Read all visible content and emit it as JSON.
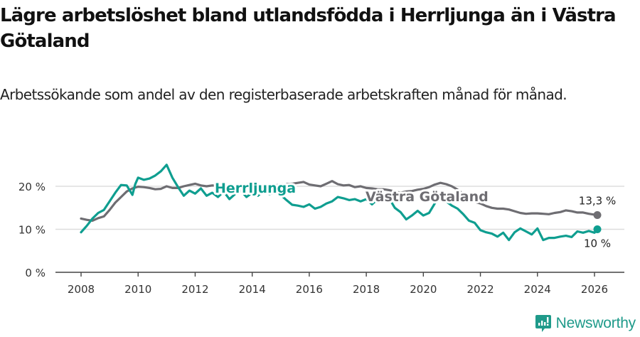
{
  "header": {
    "title": "Lägre arbetslöshet bland utlandsfödda i Herrljunga än i Västra Götaland",
    "subtitle": "Arbetssökande som andel av den registerbaserade arbetskraften månad för månad."
  },
  "colors": {
    "herrljunga": "#0f9e90",
    "vastra_gotaland": "#6e6d72",
    "grid": "#dddddd",
    "axis": "#444444",
    "brand": "#1f9a8a"
  },
  "footer": {
    "brand": "Newsworthy",
    "logo_icon": "bar-chart-speech-bubble-icon"
  },
  "chart_data": {
    "type": "line",
    "title": "Lägre arbetslöshet bland utlandsfödda i Herrljunga än i Västra Götaland",
    "subtitle": "Arbetssökande som andel av den registerbaserade arbetskraften månad för månad.",
    "xlabel": "",
    "ylabel": "",
    "x_ticks": [
      "2008",
      "2010",
      "2012",
      "2014",
      "2016",
      "2018",
      "2020",
      "2022",
      "2024",
      "2026"
    ],
    "y_ticks": [
      "0 %",
      "10 %",
      "20 %"
    ],
    "xlim": [
      2007.1,
      2027.1
    ],
    "ylim": [
      0,
      25
    ],
    "grid": true,
    "legend": "inline labels",
    "series": [
      {
        "name": "Herrljunga",
        "label": "Herrljunga",
        "end_label": "10 %",
        "x": [
          2008.0,
          2008.2,
          2008.4,
          2008.6,
          2008.8,
          2009.0,
          2009.2,
          2009.4,
          2009.6,
          2009.8,
          2009.9,
          2010.0,
          2010.2,
          2010.4,
          2010.6,
          2010.8,
          2011.0,
          2011.2,
          2011.4,
          2011.6,
          2011.8,
          2012.0,
          2012.2,
          2012.4,
          2012.6,
          2012.8,
          2013.0,
          2013.2,
          2013.4,
          2013.6,
          2013.8,
          2014.0,
          2014.2,
          2014.4,
          2014.6,
          2014.8,
          2015.0,
          2015.2,
          2015.4,
          2015.6,
          2015.8,
          2016.0,
          2016.2,
          2016.4,
          2016.6,
          2016.8,
          2017.0,
          2017.2,
          2017.4,
          2017.6,
          2017.8,
          2018.0,
          2018.2,
          2018.4,
          2018.6,
          2018.8,
          2019.0,
          2019.2,
          2019.4,
          2019.6,
          2019.8,
          2020.0,
          2020.2,
          2020.4,
          2020.6,
          2020.8,
          2021.0,
          2021.2,
          2021.4,
          2021.6,
          2021.8,
          2022.0,
          2022.2,
          2022.4,
          2022.6,
          2022.8,
          2023.0,
          2023.2,
          2023.4,
          2023.6,
          2023.8,
          2024.0,
          2024.2,
          2024.4,
          2024.6,
          2024.8,
          2025.0,
          2025.2,
          2025.4,
          2025.6,
          2025.8,
          2026.0,
          2026.1
        ],
        "values": [
          9.3,
          10.8,
          12.5,
          13.8,
          14.5,
          16.5,
          18.5,
          20.3,
          20.2,
          18.0,
          20.5,
          22.0,
          21.5,
          21.8,
          22.5,
          23.5,
          25.0,
          22.0,
          19.8,
          17.8,
          19.0,
          18.3,
          19.5,
          17.8,
          18.5,
          17.5,
          18.8,
          17.0,
          18.2,
          19.0,
          17.5,
          18.5,
          17.8,
          19.0,
          18.2,
          18.5,
          18.0,
          16.8,
          15.7,
          15.5,
          15.2,
          15.8,
          14.8,
          15.2,
          16.0,
          16.5,
          17.5,
          17.2,
          16.8,
          17.0,
          16.5,
          17.0,
          15.8,
          17.0,
          16.5,
          17.2,
          15.0,
          14.0,
          12.3,
          13.2,
          14.3,
          13.2,
          13.8,
          16.0,
          18.0,
          16.5,
          15.5,
          14.8,
          13.5,
          12.0,
          11.5,
          9.8,
          9.3,
          9.0,
          8.3,
          9.2,
          7.5,
          9.3,
          10.2,
          9.5,
          8.8,
          10.2,
          7.5,
          8.0,
          8.0,
          8.3,
          8.5,
          8.2,
          9.5,
          9.2,
          9.6,
          9.2,
          10.0
        ]
      },
      {
        "name": "Västra Götaland",
        "label": "Västra Götaland",
        "end_label": "13,3 %",
        "x": [
          2008.0,
          2008.2,
          2008.4,
          2008.6,
          2008.8,
          2009.0,
          2009.2,
          2009.4,
          2009.6,
          2009.8,
          2010.0,
          2010.2,
          2010.4,
          2010.6,
          2010.8,
          2011.0,
          2011.2,
          2011.4,
          2011.6,
          2011.8,
          2012.0,
          2012.2,
          2012.4,
          2012.6,
          2012.8,
          2013.0,
          2013.2,
          2013.4,
          2013.6,
          2013.8,
          2014.0,
          2014.2,
          2014.4,
          2014.6,
          2014.8,
          2015.0,
          2015.2,
          2015.4,
          2015.6,
          2015.8,
          2016.0,
          2016.2,
          2016.4,
          2016.6,
          2016.8,
          2017.0,
          2017.2,
          2017.4,
          2017.6,
          2017.8,
          2018.0,
          2018.2,
          2018.4,
          2018.6,
          2018.8,
          2019.0,
          2019.2,
          2019.4,
          2019.6,
          2019.8,
          2020.0,
          2020.2,
          2020.4,
          2020.6,
          2020.8,
          2021.0,
          2021.2,
          2021.4,
          2021.6,
          2021.8,
          2022.0,
          2022.2,
          2022.4,
          2022.6,
          2022.8,
          2023.0,
          2023.2,
          2023.4,
          2023.6,
          2023.8,
          2024.0,
          2024.2,
          2024.4,
          2024.6,
          2024.8,
          2025.0,
          2025.2,
          2025.4,
          2025.6,
          2025.8,
          2026.0,
          2026.1
        ],
        "values": [
          12.5,
          12.2,
          12.0,
          12.6,
          13.0,
          14.5,
          16.2,
          17.5,
          18.8,
          19.5,
          19.9,
          19.8,
          19.6,
          19.3,
          19.4,
          20.0,
          19.6,
          19.6,
          20.0,
          20.3,
          20.6,
          20.2,
          20.0,
          20.2,
          20.1,
          20.0,
          19.9,
          20.1,
          20.3,
          20.2,
          20.2,
          20.1,
          20.2,
          20.3,
          20.2,
          20.4,
          20.5,
          20.6,
          20.8,
          21.0,
          20.4,
          20.2,
          20.0,
          20.6,
          21.2,
          20.5,
          20.2,
          20.3,
          19.8,
          20.0,
          19.6,
          19.5,
          19.3,
          19.3,
          19.1,
          18.8,
          18.5,
          18.8,
          18.9,
          19.2,
          19.4,
          19.8,
          20.4,
          20.8,
          20.5,
          20.0,
          19.2,
          18.2,
          17.2,
          16.4,
          16.0,
          15.4,
          15.0,
          14.8,
          14.8,
          14.6,
          14.2,
          13.8,
          13.6,
          13.7,
          13.7,
          13.6,
          13.5,
          13.8,
          14.0,
          14.4,
          14.2,
          13.9,
          13.9,
          13.6,
          13.4,
          13.3
        ]
      }
    ]
  }
}
